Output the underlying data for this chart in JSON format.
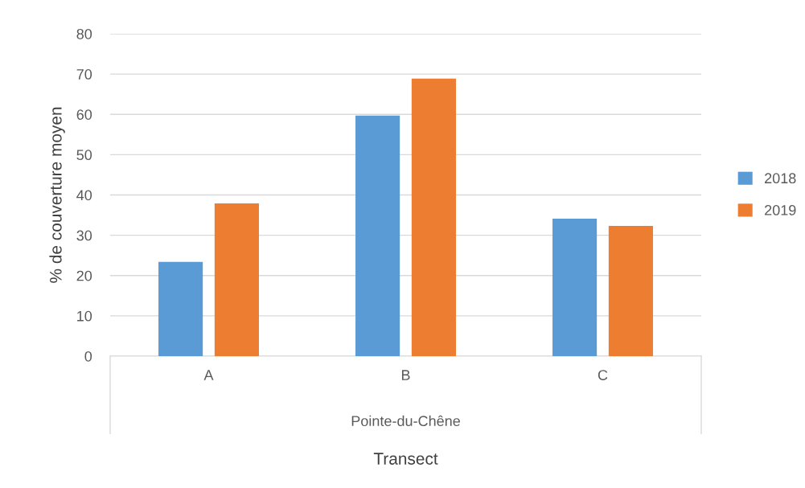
{
  "chart_data": {
    "type": "bar",
    "xlabel": "Transect",
    "ylabel": "% de couverture moyen",
    "categories": [
      "A",
      "B",
      "C"
    ],
    "series": [
      {
        "name": "2018",
        "color": "#5b9bd5",
        "values": [
          23.4,
          59.7,
          34.1
        ]
      },
      {
        "name": "2019",
        "color": "#ed7d31",
        "values": [
          37.9,
          68.9,
          32.3
        ]
      }
    ],
    "annotations": [
      "Pointe-du-Chêne"
    ],
    "ylim": [
      0,
      80
    ],
    "yticks": [
      0,
      10,
      20,
      30,
      40,
      50,
      60,
      70,
      80
    ],
    "grid": "y",
    "legend": "right"
  }
}
